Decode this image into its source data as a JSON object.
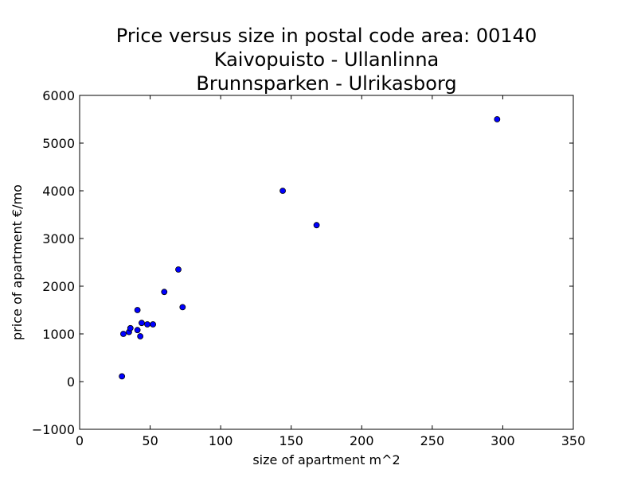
{
  "chart_data": {
    "type": "scatter",
    "title_lines": [
      "Price versus size in postal code area: 00140",
      "Kaivopuisto - Ullanlinna",
      "Brunnsparken - Ulrikasborg"
    ],
    "xlabel": "size of apartment m^2",
    "ylabel": "price of apartment €/mo",
    "xlim": [
      0,
      350
    ],
    "ylim": [
      -1000,
      6000
    ],
    "xticks": [
      0,
      50,
      100,
      150,
      200,
      250,
      300,
      350
    ],
    "yticks": [
      -1000,
      0,
      1000,
      2000,
      3000,
      4000,
      5000,
      6000
    ],
    "xtick_labels": [
      "0",
      "50",
      "100",
      "150",
      "200",
      "250",
      "300",
      "350"
    ],
    "ytick_labels": [
      "−1000",
      "0",
      "1000",
      "2000",
      "3000",
      "4000",
      "5000",
      "6000"
    ],
    "grid": false,
    "marker_color": "#0000ff",
    "marker_edge_color": "#000000",
    "points": [
      {
        "x": 30,
        "y": 110
      },
      {
        "x": 31,
        "y": 1000
      },
      {
        "x": 35,
        "y": 1040
      },
      {
        "x": 36,
        "y": 1120
      },
      {
        "x": 41,
        "y": 1500
      },
      {
        "x": 41,
        "y": 1080
      },
      {
        "x": 43,
        "y": 950
      },
      {
        "x": 44,
        "y": 1230
      },
      {
        "x": 48,
        "y": 1200
      },
      {
        "x": 52,
        "y": 1200
      },
      {
        "x": 60,
        "y": 1880
      },
      {
        "x": 70,
        "y": 2350
      },
      {
        "x": 73,
        "y": 1560
      },
      {
        "x": 144,
        "y": 4000
      },
      {
        "x": 168,
        "y": 3280
      },
      {
        "x": 296,
        "y": 5500
      }
    ]
  }
}
